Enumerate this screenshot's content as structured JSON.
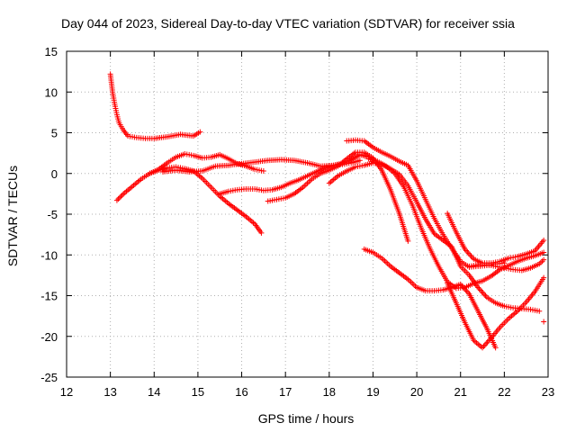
{
  "chart_data": {
    "type": "scatter",
    "title": "Day 044 of 2023, Sidereal Day-to-day VTEC variation (SDTVAR) for receiver ssia",
    "xlabel": "GPS time / hours",
    "ylabel": "SDTVAR / TECUs",
    "xlim": [
      12,
      23
    ],
    "ylim": [
      -25,
      15
    ],
    "xticks": [
      "12",
      "13",
      "14",
      "15",
      "16",
      "17",
      "18",
      "19",
      "20",
      "21",
      "22",
      "23"
    ],
    "yticks": [
      "15",
      "10",
      "5",
      "0",
      "-5",
      "-10",
      "-15",
      "-20",
      "-25"
    ],
    "grid": true,
    "marker": "+",
    "color": "#ff0000",
    "series": [
      {
        "name": "track1",
        "x": [
          13.0,
          13.05,
          13.1,
          13.15,
          13.2,
          13.3,
          13.4,
          13.6,
          13.8,
          14.0,
          14.3,
          14.6,
          14.9,
          15.05
        ],
        "y": [
          12.2,
          10.0,
          8.5,
          7.2,
          6.2,
          5.3,
          4.6,
          4.4,
          4.3,
          4.3,
          4.5,
          4.8,
          4.6,
          5.1
        ]
      },
      {
        "name": "track2",
        "x": [
          13.15,
          13.3,
          13.5,
          13.7,
          13.9,
          14.1,
          14.3,
          14.5,
          14.7,
          14.9,
          15.1,
          15.3,
          15.5,
          15.7,
          15.9,
          16.1,
          16.3,
          16.45
        ],
        "y": [
          -3.3,
          -2.5,
          -1.6,
          -0.7,
          0.0,
          0.4,
          0.7,
          0.8,
          0.6,
          0.3,
          -0.6,
          -1.7,
          -2.8,
          -3.7,
          -4.5,
          -5.3,
          -6.2,
          -7.3
        ]
      },
      {
        "name": "track3",
        "x": [
          13.9,
          14.1,
          14.3,
          14.5,
          14.7,
          14.9,
          15.1,
          15.3,
          15.5,
          15.7,
          15.9,
          16.1,
          16.3,
          16.5
        ],
        "y": [
          0.0,
          0.5,
          1.3,
          2.0,
          2.4,
          2.2,
          1.9,
          2.0,
          2.3,
          1.8,
          1.2,
          0.9,
          0.5,
          0.3
        ]
      },
      {
        "name": "track4",
        "x": [
          14.2,
          14.5,
          14.8,
          15.1,
          15.4,
          15.7,
          16.0,
          16.3,
          16.6,
          16.9,
          17.2,
          17.5,
          17.8,
          18.1,
          18.4,
          18.7,
          18.9
        ],
        "y": [
          0.2,
          0.4,
          0.2,
          0.3,
          0.9,
          1.0,
          1.2,
          1.4,
          1.6,
          1.7,
          1.6,
          1.3,
          0.9,
          1.0,
          1.4,
          2.3,
          2.0
        ]
      },
      {
        "name": "track5",
        "x": [
          15.5,
          15.7,
          15.9,
          16.1,
          16.3,
          16.5,
          16.7,
          16.9,
          17.1,
          17.3,
          17.5,
          17.7,
          17.9,
          18.1,
          18.3,
          18.5,
          18.7
        ],
        "y": [
          -2.5,
          -2.2,
          -2.0,
          -1.9,
          -1.9,
          -2.1,
          -2.0,
          -1.7,
          -1.2,
          -0.8,
          -0.3,
          0.2,
          0.7,
          1.0,
          1.1,
          1.3,
          1.6
        ]
      },
      {
        "name": "track6",
        "x": [
          16.6,
          16.8,
          17.0,
          17.2,
          17.4,
          17.6,
          17.8,
          18.0,
          18.2,
          18.4,
          18.6,
          18.8,
          19.0,
          19.2,
          19.4,
          19.6,
          19.8
        ],
        "y": [
          -3.4,
          -3.2,
          -3.0,
          -2.5,
          -1.7,
          -0.7,
          0.0,
          0.4,
          0.9,
          1.8,
          2.6,
          2.6,
          1.9,
          0.4,
          -2.0,
          -4.9,
          -8.3
        ]
      },
      {
        "name": "track7",
        "x": [
          18.4,
          18.6,
          18.8,
          19.0,
          19.2,
          19.4,
          19.6,
          19.8,
          20.0,
          20.2,
          20.4,
          20.6,
          20.8,
          21.0,
          21.2,
          21.4,
          21.6,
          21.8,
          22.0
        ],
        "y": [
          4.0,
          4.1,
          4.0,
          3.2,
          2.6,
          2.1,
          1.5,
          1.0,
          -0.9,
          -3.2,
          -5.5,
          -7.5,
          -9.2,
          -10.8,
          -11.5,
          -11.4,
          -11.3,
          -11.1,
          -11.0
        ]
      },
      {
        "name": "track8",
        "x": [
          18.0,
          18.2,
          18.4,
          18.6,
          18.8,
          19.0,
          19.2,
          19.4,
          19.6,
          19.8,
          20.0,
          20.2,
          20.4,
          20.6,
          20.8,
          21.0,
          21.2,
          21.4,
          21.6,
          21.8,
          22.0,
          22.2,
          22.4,
          22.6,
          22.8
        ],
        "y": [
          -1.2,
          -0.3,
          0.3,
          0.8,
          1.0,
          1.3,
          1.1,
          0.6,
          -0.1,
          -1.5,
          -3.5,
          -5.6,
          -7.4,
          -8.2,
          -9.0,
          -11.4,
          -12.5,
          -14.0,
          -15.2,
          -15.9,
          -16.3,
          -16.5,
          -16.6,
          -16.7,
          -16.9
        ]
      },
      {
        "name": "track9",
        "x": [
          18.8,
          19.0,
          19.2,
          19.4,
          19.6,
          19.8,
          20.0,
          20.2,
          20.4,
          20.6,
          20.8,
          21.0,
          21.2,
          21.4,
          21.6,
          21.8
        ],
        "y": [
          -9.3,
          -9.7,
          -10.4,
          -11.4,
          -12.2,
          -13.0,
          -14.0,
          -14.4,
          -14.4,
          -14.3,
          -14.0,
          -13.6,
          -14.8,
          -16.9,
          -19.0,
          -21.4
        ]
      },
      {
        "name": "track10",
        "x": [
          18.9,
          19.1,
          19.3,
          19.5,
          19.7,
          19.9,
          20.1,
          20.3,
          20.5,
          20.7,
          20.9,
          21.1,
          21.3,
          21.5,
          21.7,
          21.9,
          22.1,
          22.3,
          22.5,
          22.7,
          22.9
        ],
        "y": [
          1.8,
          1.5,
          0.9,
          0.0,
          -1.6,
          -3.9,
          -6.7,
          -9.2,
          -11.4,
          -13.3,
          -14.1,
          -14.0,
          -13.5,
          -13.2,
          -12.6,
          -11.8,
          -11.3,
          -10.8,
          -10.4,
          -10.1,
          -9.7
        ]
      },
      {
        "name": "track11",
        "x": [
          20.7,
          20.9,
          21.1,
          21.3,
          21.5,
          21.7,
          21.9,
          22.1,
          22.3,
          22.5,
          22.7,
          22.9
        ],
        "y": [
          -4.9,
          -7.2,
          -9.3,
          -10.5,
          -11.0,
          -11.0,
          -10.8,
          -10.4,
          -10.2,
          -9.9,
          -9.5,
          -8.2
        ]
      },
      {
        "name": "track12",
        "x": [
          20.7,
          20.9,
          21.1,
          21.3,
          21.5,
          21.7,
          21.9,
          22.1,
          22.3,
          22.5,
          22.7,
          22.9
        ],
        "y": [
          -13.5,
          -15.9,
          -18.3,
          -20.5,
          -21.4,
          -20.2,
          -18.9,
          -17.8,
          -16.9,
          -15.8,
          -14.5,
          -12.8
        ]
      },
      {
        "name": "track13",
        "x": [
          21.2,
          21.4,
          21.6,
          21.8,
          22.0,
          22.2,
          22.4,
          22.6,
          22.8,
          22.9
        ],
        "y": [
          -11.4,
          -11.2,
          -11.2,
          -11.4,
          -11.6,
          -11.8,
          -11.9,
          -11.6,
          -11.1,
          -10.6
        ]
      },
      {
        "name": "track14",
        "x": [
          22.9
        ],
        "y": [
          -18.2
        ]
      }
    ]
  }
}
